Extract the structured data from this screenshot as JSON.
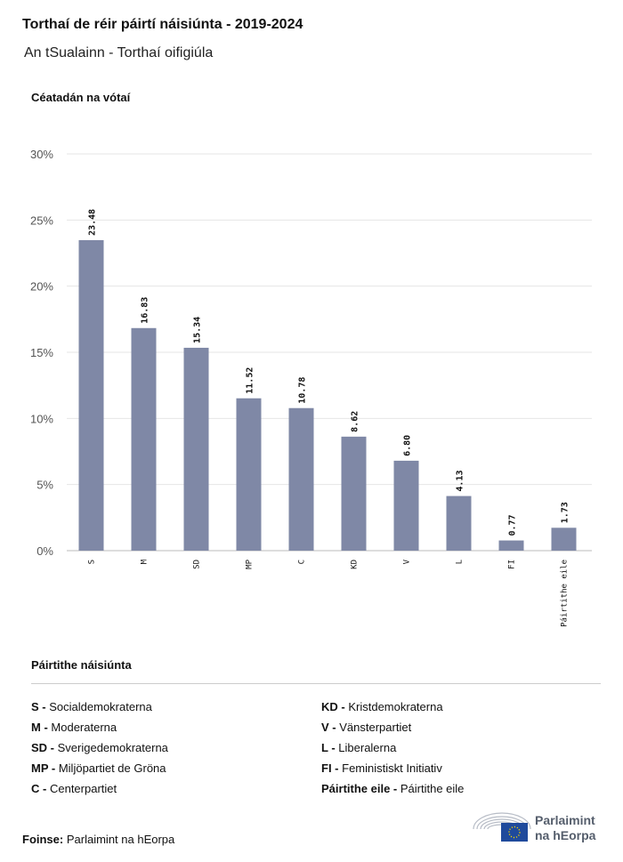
{
  "header": {
    "title": "Torthaí de réir páirtí náisiúnta - 2019-2024",
    "subtitle": "An tSualainn - Torthaí oifigiúla"
  },
  "chart_data": {
    "type": "bar",
    "ylabel": "Céatadán na vótaí",
    "categories": [
      "S",
      "M",
      "SD",
      "MP",
      "C",
      "KD",
      "V",
      "L",
      "FI",
      "Páirtithe eile"
    ],
    "values": [
      23.48,
      16.83,
      15.34,
      11.52,
      10.78,
      8.62,
      6.8,
      4.13,
      0.77,
      1.73
    ],
    "value_labels": [
      "23.48",
      "16.83",
      "15.34",
      "11.52",
      "10.78",
      "8.62",
      "6.80",
      "4.13",
      "0.77",
      "1.73"
    ],
    "ylim": [
      0,
      30
    ],
    "yticks": [
      0,
      5,
      10,
      15,
      20,
      25,
      30
    ],
    "ytick_labels": [
      "0%",
      "5%",
      "10%",
      "15%",
      "20%",
      "25%",
      "30%"
    ],
    "grid": true,
    "bar_color": "#7f88a6"
  },
  "legend": {
    "title": "Páirtithe náisiúnta",
    "items": [
      {
        "abbr": "S -",
        "name": "Socialdemokraterna"
      },
      {
        "abbr": "M -",
        "name": "Moderaterna"
      },
      {
        "abbr": "SD -",
        "name": "Sverigedemokraterna"
      },
      {
        "abbr": "MP -",
        "name": "Miljöpartiet de Gröna"
      },
      {
        "abbr": "C -",
        "name": "Centerpartiet"
      },
      {
        "abbr": "KD -",
        "name": "Kristdemokraterna"
      },
      {
        "abbr": "V -",
        "name": "Vänsterpartiet"
      },
      {
        "abbr": "L -",
        "name": "Liberalerna"
      },
      {
        "abbr": "FI -",
        "name": "Feministiskt Initiativ"
      },
      {
        "abbr": "Páirtithe eile -",
        "name": "Páirtithe eile"
      }
    ]
  },
  "footer": {
    "source_label": "Foinse:",
    "source": "Parlaimint na hEorpa",
    "logo_line1": "Parlaimint",
    "logo_line2": "na hEorpa"
  }
}
